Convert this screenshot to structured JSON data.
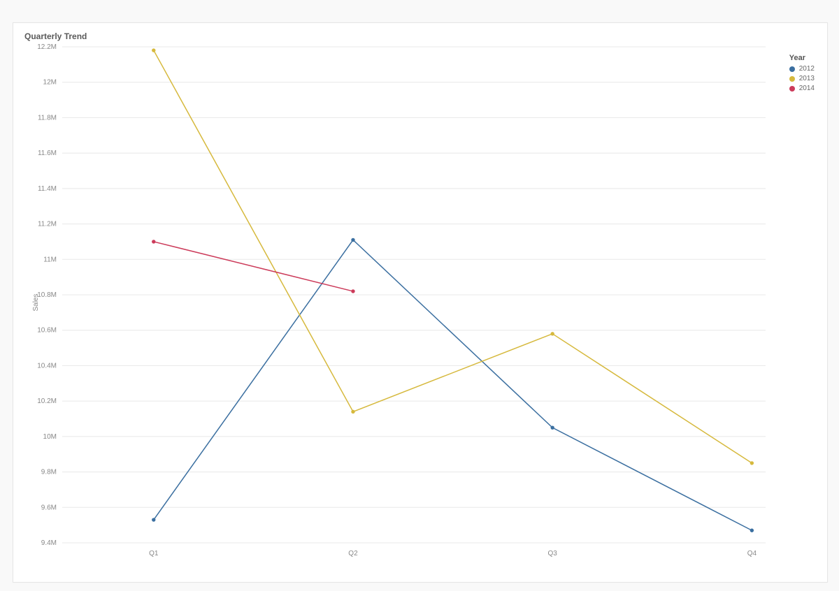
{
  "chart": {
    "type": "line",
    "title": "Quarterly Trend",
    "title_fontsize": 12,
    "title_color": "#5a5a5a",
    "background_color": "#ffffff",
    "page_background": "#f9f9f9",
    "grid_color": "#e8e8e8",
    "axis_color": "#cccccc",
    "tick_label_color": "#888888",
    "tick_label_fontsize": 10,
    "line_width": 1.5,
    "marker_radius": 2.2,
    "x": {
      "categories": [
        "Q1",
        "Q2",
        "Q3",
        "Q4"
      ]
    },
    "y": {
      "title": "Sales",
      "min": 9400000,
      "max": 12200000,
      "tick_step": 200000,
      "tick_labels": [
        "9.4M",
        "9.6M",
        "9.8M",
        "10M",
        "10.2M",
        "10.4M",
        "10.6M",
        "10.8M",
        "11M",
        "11.2M",
        "11.4M",
        "11.6M",
        "11.8M",
        "12M",
        "12.2M"
      ]
    },
    "legend": {
      "title": "Year",
      "position": "top-right"
    },
    "series": [
      {
        "name": "2012",
        "color": "#3b6fa0",
        "values": [
          9530000,
          11110000,
          10050000,
          9470000
        ]
      },
      {
        "name": "2013",
        "color": "#d6b93d",
        "values": [
          12180000,
          10140000,
          10580000,
          9850000
        ]
      },
      {
        "name": "2014",
        "color": "#cc3b5a",
        "values": [
          11100000,
          10820000,
          null,
          null
        ]
      }
    ]
  }
}
